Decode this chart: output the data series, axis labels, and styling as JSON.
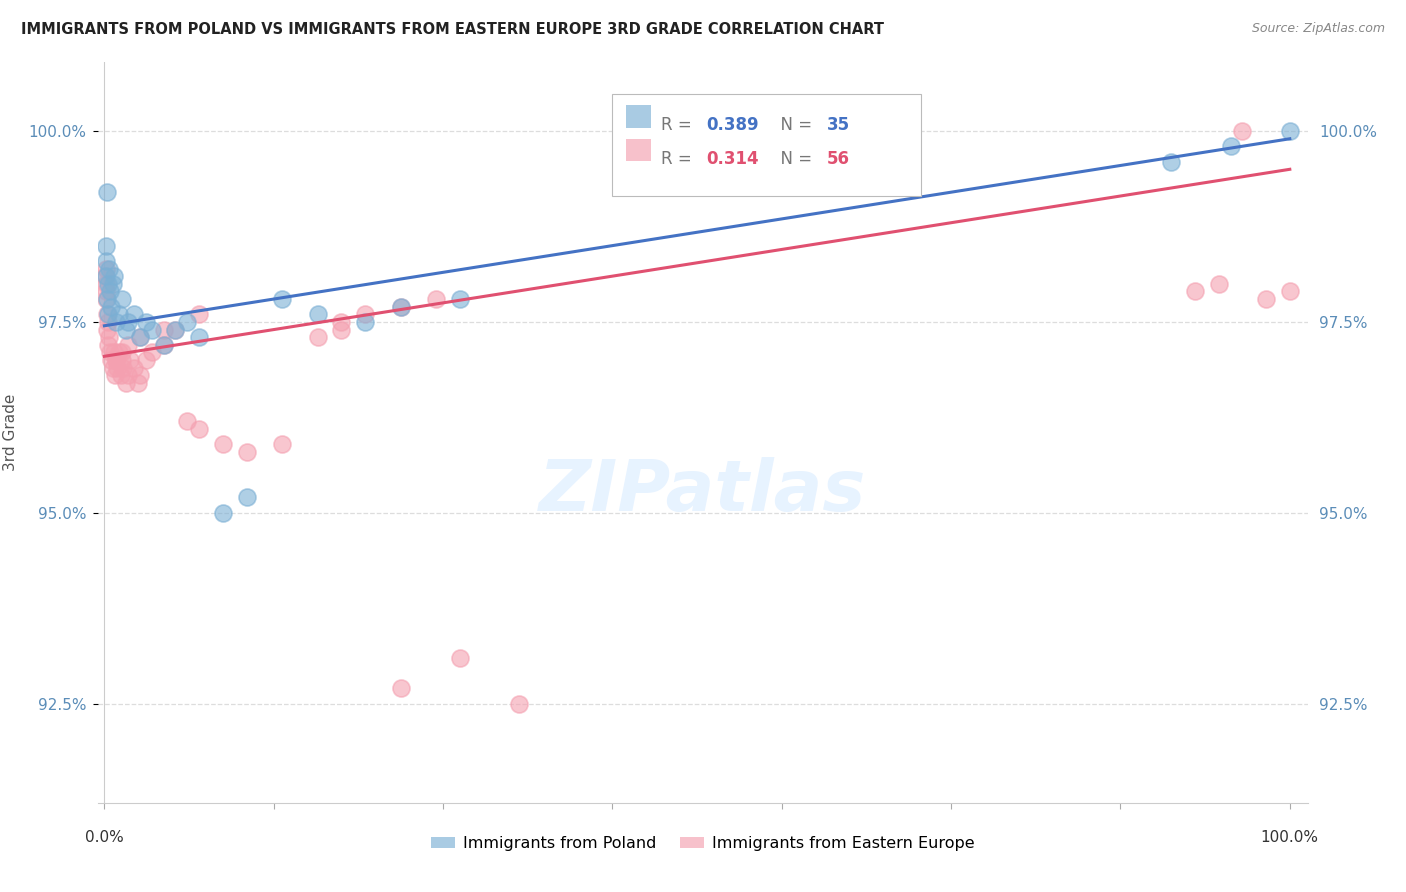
{
  "title": "IMMIGRANTS FROM POLAND VS IMMIGRANTS FROM EASTERN EUROPE 3RD GRADE CORRELATION CHART",
  "source": "Source: ZipAtlas.com",
  "ylabel": "3rd Grade",
  "yticks": [
    92.5,
    95.0,
    97.5,
    100.0
  ],
  "ytick_labels": [
    "92.5%",
    "95.0%",
    "97.5%",
    "100.0%"
  ],
  "ymin": 91.2,
  "ymax": 100.9,
  "xmin": -0.5,
  "xmax": 101.5,
  "blue_label": "Immigrants from Poland",
  "pink_label": "Immigrants from Eastern Europe",
  "blue_R": 0.389,
  "blue_N": 35,
  "pink_R": 0.314,
  "pink_N": 56,
  "blue_color": "#7BAFD4",
  "pink_color": "#F4A0B0",
  "trend_blue": "#4472C4",
  "trend_pink": "#E05070",
  "axis_color": "#5B8DB8",
  "grid_color": "#DDDDDD",
  "blue_x": [
    0.1,
    0.15,
    0.18,
    0.2,
    0.25,
    0.3,
    0.35,
    0.4,
    0.5,
    0.6,
    0.7,
    0.8,
    1.0,
    1.2,
    1.5,
    1.8,
    2.0,
    2.5,
    3.0,
    3.5,
    4.0,
    5.0,
    6.0,
    7.0,
    8.0,
    10.0,
    12.0,
    15.0,
    18.0,
    22.0,
    25.0,
    30.0,
    90.0,
    95.0,
    100.0
  ],
  "blue_y": [
    98.3,
    98.1,
    98.5,
    99.2,
    97.8,
    98.0,
    97.6,
    98.2,
    97.9,
    97.7,
    98.0,
    98.1,
    97.5,
    97.6,
    97.8,
    97.4,
    97.5,
    97.6,
    97.3,
    97.5,
    97.4,
    97.2,
    97.4,
    97.5,
    97.3,
    95.0,
    95.2,
    97.8,
    97.6,
    97.5,
    97.7,
    97.8,
    99.6,
    99.8,
    100.0
  ],
  "pink_x": [
    0.05,
    0.1,
    0.12,
    0.15,
    0.18,
    0.2,
    0.25,
    0.3,
    0.35,
    0.4,
    0.5,
    0.6,
    0.7,
    0.8,
    0.9,
    1.0,
    1.1,
    1.2,
    1.4,
    1.5,
    1.6,
    1.8,
    2.0,
    2.2,
    2.5,
    2.8,
    3.0,
    3.5,
    4.0,
    5.0,
    6.0,
    7.0,
    8.0,
    10.0,
    12.0,
    15.0,
    18.0,
    20.0,
    25.0,
    30.0,
    35.0,
    20.0,
    22.0,
    25.0,
    28.0,
    92.0,
    94.0,
    96.0,
    98.0,
    100.0,
    8.0,
    5.0,
    3.0,
    2.0,
    1.5,
    1.0
  ],
  "pink_y": [
    98.1,
    97.9,
    98.2,
    97.8,
    98.0,
    97.6,
    97.4,
    97.5,
    97.2,
    97.3,
    97.1,
    97.0,
    96.9,
    97.1,
    96.8,
    97.0,
    96.9,
    97.1,
    96.8,
    97.0,
    96.9,
    96.7,
    96.8,
    97.0,
    96.9,
    96.7,
    96.8,
    97.0,
    97.1,
    97.2,
    97.4,
    96.2,
    96.1,
    95.9,
    95.8,
    95.9,
    97.3,
    97.4,
    92.7,
    93.1,
    92.5,
    97.5,
    97.6,
    97.7,
    97.8,
    97.9,
    98.0,
    100.0,
    97.8,
    97.9,
    97.6,
    97.4,
    97.3,
    97.2,
    97.1,
    97.0
  ],
  "blue_trend_x0": 0.0,
  "blue_trend_y0": 97.45,
  "blue_trend_x1": 100.0,
  "blue_trend_y1": 99.9,
  "pink_trend_x0": 0.0,
  "pink_trend_y0": 97.05,
  "pink_trend_x1": 100.0,
  "pink_trend_y1": 99.5
}
